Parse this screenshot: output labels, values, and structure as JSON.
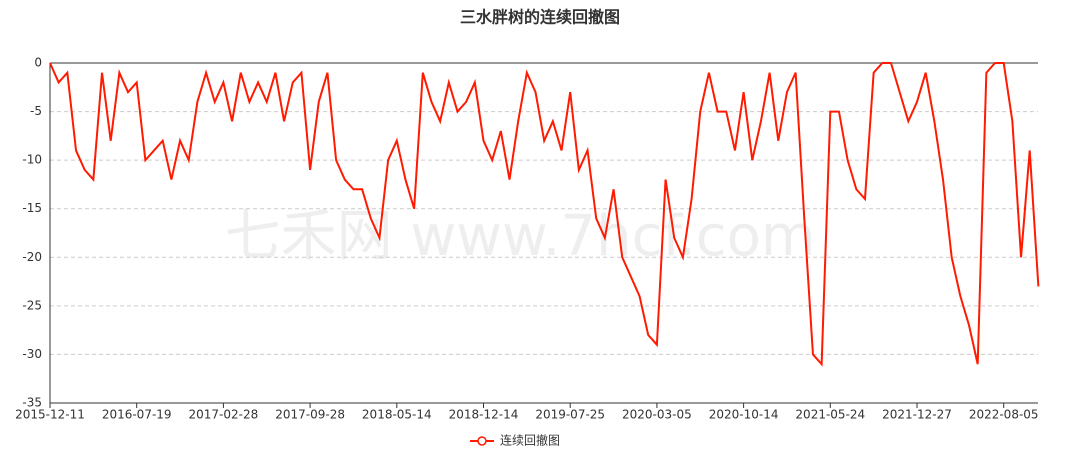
{
  "chart_data": {
    "type": "line",
    "title": "三水胖树的连续回撤图",
    "watermark": "七禾网 www.7hcf.com",
    "categories": [
      "2015-12-11",
      null,
      null,
      null,
      null,
      null,
      null,
      null,
      null,
      null,
      "2016-07-19",
      null,
      null,
      null,
      null,
      null,
      null,
      null,
      null,
      null,
      "2017-02-28",
      null,
      null,
      null,
      null,
      null,
      null,
      null,
      null,
      null,
      "2017-09-28",
      null,
      null,
      null,
      null,
      null,
      null,
      null,
      null,
      null,
      "2018-05-14",
      null,
      null,
      null,
      null,
      null,
      null,
      null,
      null,
      null,
      "2018-12-14",
      null,
      null,
      null,
      null,
      null,
      null,
      null,
      null,
      null,
      "2019-07-25",
      null,
      null,
      null,
      null,
      null,
      null,
      null,
      null,
      null,
      "2020-03-05",
      null,
      null,
      null,
      null,
      null,
      null,
      null,
      null,
      null,
      "2020-10-14",
      null,
      null,
      null,
      null,
      null,
      null,
      null,
      null,
      null,
      "2021-05-24",
      null,
      null,
      null,
      null,
      null,
      null,
      null,
      null,
      null,
      "2021-12-27",
      null,
      null,
      null,
      null,
      null,
      null,
      null,
      null,
      null,
      "2022-08-05",
      null,
      null,
      null,
      null
    ],
    "series": [
      {
        "name": "连续回撤图",
        "color": "#ff1a00",
        "values": [
          0,
          -2,
          -1,
          -9,
          -11,
          -12,
          -1,
          -8,
          -1,
          -3,
          -2,
          -10,
          -9,
          -8,
          -12,
          -8,
          -10,
          -4,
          -1,
          -4,
          -2,
          -6,
          -1,
          -4,
          -2,
          -4,
          -1,
          -6,
          -2,
          -1,
          -11,
          -4,
          -1,
          -10,
          -12,
          -13,
          -13,
          -16,
          -18,
          -10,
          -8,
          -12,
          -15,
          -1,
          -4,
          -6,
          -2,
          -5,
          -4,
          -2,
          -8,
          -10,
          -7,
          -12,
          -6,
          -1,
          -3,
          -8,
          -6,
          -9,
          -3,
          -11,
          -9,
          -16,
          -18,
          -13,
          -20,
          -22,
          -24,
          -28,
          -29,
          -12,
          -18,
          -20,
          -14,
          -5,
          -1,
          -5,
          -5,
          -9,
          -3,
          -10,
          -6,
          -1,
          -8,
          -3,
          -1,
          -16,
          -30,
          -31,
          -5,
          -5,
          -10,
          -13,
          -14,
          -1,
          0,
          0,
          -3,
          -6,
          -4,
          -1,
          -6,
          -12,
          -20,
          -24,
          -27,
          -31,
          -1,
          0,
          0,
          -6,
          -20,
          -9,
          -23
        ]
      }
    ],
    "ylim": [
      -35,
      0
    ],
    "yticks": [
      0,
      -5,
      -10,
      -15,
      -20,
      -25,
      -30,
      -35
    ],
    "grid": true,
    "legend": "bottom"
  }
}
